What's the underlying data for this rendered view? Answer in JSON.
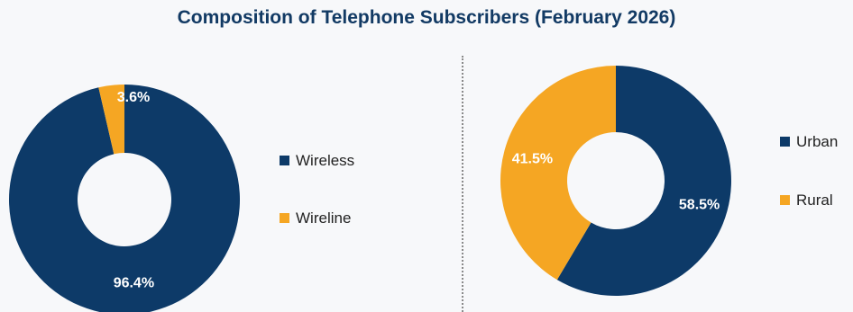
{
  "title": "Composition of Telephone Subscribers (February 2026)",
  "colors": {
    "primary": "#0d3a68",
    "accent": "#f5a623"
  },
  "chart_data": [
    {
      "type": "pie",
      "categories": [
        "Wireless",
        "Wireline"
      ],
      "values": [
        96.4,
        3.6
      ],
      "labels": [
        "96.4%",
        "3.6%"
      ],
      "colors": [
        "#0d3a68",
        "#f5a623"
      ],
      "legend": "right"
    },
    {
      "type": "pie",
      "categories": [
        "Urban",
        "Rural"
      ],
      "values": [
        58.5,
        41.5
      ],
      "labels": [
        "58.5%",
        "41.5%"
      ],
      "colors": [
        "#0d3a68",
        "#f5a623"
      ],
      "legend": "right"
    }
  ]
}
